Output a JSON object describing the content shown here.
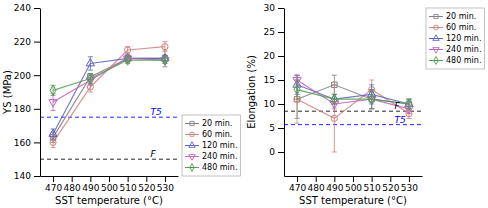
{
  "chart_data": [
    {
      "type": "line",
      "xlabel": "SST temperature (°C)",
      "ylabel": "YS (MPa)",
      "x": [
        470,
        490,
        510,
        530
      ],
      "xlim": [
        463,
        537
      ],
      "xticks": [
        470,
        480,
        490,
        500,
        510,
        520,
        530
      ],
      "ylim": [
        140,
        240
      ],
      "yticks": [
        140,
        160,
        180,
        200,
        220,
        240
      ],
      "legend": "lower right",
      "series": [
        {
          "name": "20 min.",
          "color": "#808080",
          "marker": "square",
          "line_style": "solid",
          "values": [
            163,
            199,
            210,
            210
          ],
          "errors": [
            3,
            2,
            2,
            5
          ]
        },
        {
          "name": "60 min.",
          "color": "#d08080",
          "marker": "circle",
          "line_style": "solid",
          "values": [
            160,
            193,
            215,
            217
          ],
          "errors": [
            3,
            3,
            2,
            3
          ]
        },
        {
          "name": "120 min.",
          "color": "#6060c0",
          "marker": "triangle-up",
          "line_style": "solid",
          "values": [
            165,
            207,
            210,
            210
          ],
          "errors": [
            3,
            4,
            2,
            2
          ]
        },
        {
          "name": "240 min.",
          "color": "#c060c0",
          "marker": "triangle-down",
          "line_style": "solid",
          "values": [
            184,
            197,
            210,
            209
          ],
          "errors": [
            5,
            3,
            2,
            2
          ]
        },
        {
          "name": "480 min.",
          "color": "#50a050",
          "marker": "diamond",
          "line_style": "solid",
          "values": [
            191,
            198,
            209,
            209
          ],
          "errors": [
            3,
            3,
            2,
            2
          ]
        }
      ],
      "reference_lines": [
        {
          "value": 175,
          "label": "T5",
          "color": "blue",
          "line_style": "dashed"
        },
        {
          "value": 150,
          "label": "F",
          "color": "black",
          "line_style": "dashed"
        }
      ]
    },
    {
      "type": "line",
      "xlabel": "SST temperature (°C)",
      "ylabel": "Elongation (%)",
      "x": [
        470,
        490,
        510,
        530
      ],
      "xlim": [
        463,
        537
      ],
      "xticks": [
        470,
        480,
        490,
        500,
        510,
        520,
        530
      ],
      "ylim": [
        -5,
        30
      ],
      "yticks": [
        0,
        5,
        10,
        15,
        20,
        25,
        30
      ],
      "legend": "upper right",
      "series": [
        {
          "name": "20 min.",
          "color": "#808080",
          "marker": "square",
          "line_style": "solid",
          "values": [
            11,
            14,
            11,
            10
          ],
          "errors": [
            4,
            2,
            2,
            1
          ]
        },
        {
          "name": "60 min.",
          "color": "#d08080",
          "marker": "circle",
          "line_style": "solid",
          "values": [
            11,
            7,
            13,
            8
          ],
          "errors": [
            5,
            7,
            2,
            1
          ]
        },
        {
          "name": "120 min.",
          "color": "#6060c0",
          "marker": "triangle-up",
          "line_style": "solid",
          "values": [
            14,
            11,
            12,
            10
          ],
          "errors": [
            2,
            1,
            2,
            1
          ]
        },
        {
          "name": "240 min.",
          "color": "#c060c0",
          "marker": "triangle-down",
          "line_style": "solid",
          "values": [
            15,
            10,
            11,
            9
          ],
          "errors": [
            1,
            1,
            2,
            1
          ]
        },
        {
          "name": "480 min.",
          "color": "#50a050",
          "marker": "diamond",
          "line_style": "solid",
          "values": [
            13,
            11,
            11,
            10
          ],
          "errors": [
            2,
            1,
            2,
            1
          ]
        }
      ],
      "reference_lines": [
        {
          "value": 8.5,
          "label": "F",
          "color": "black",
          "line_style": "dashed"
        },
        {
          "value": 5.7,
          "label": "T5",
          "color": "blue",
          "line_style": "dashed"
        }
      ]
    }
  ]
}
